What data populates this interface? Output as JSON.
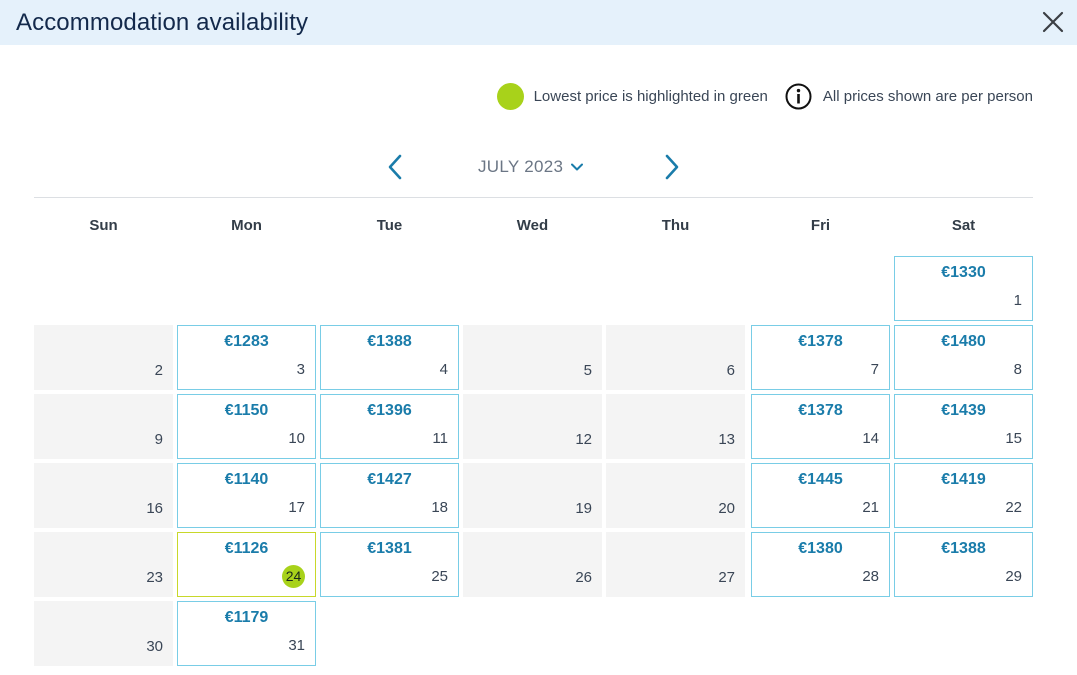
{
  "dialog": {
    "title": "Accommodation availability"
  },
  "legend": {
    "lowest_text": "Lowest price is highlighted in green",
    "info_text": "All prices shown are per person",
    "lowest_color": "#a8d21a"
  },
  "calendar": {
    "month_label": "JULY 2023",
    "weekdays": [
      "Sun",
      "Mon",
      "Tue",
      "Wed",
      "Thu",
      "Fri",
      "Sat"
    ],
    "start_weekday_index": 6,
    "days": [
      {
        "day": "1",
        "price": "€1330"
      },
      {
        "day": "2",
        "price": ""
      },
      {
        "day": "3",
        "price": "€1283"
      },
      {
        "day": "4",
        "price": "€1388"
      },
      {
        "day": "5",
        "price": ""
      },
      {
        "day": "6",
        "price": ""
      },
      {
        "day": "7",
        "price": "€1378"
      },
      {
        "day": "8",
        "price": "€1480"
      },
      {
        "day": "9",
        "price": ""
      },
      {
        "day": "10",
        "price": "€1150"
      },
      {
        "day": "11",
        "price": "€1396"
      },
      {
        "day": "12",
        "price": ""
      },
      {
        "day": "13",
        "price": ""
      },
      {
        "day": "14",
        "price": "€1378"
      },
      {
        "day": "15",
        "price": "€1439"
      },
      {
        "day": "16",
        "price": ""
      },
      {
        "day": "17",
        "price": "€1140"
      },
      {
        "day": "18",
        "price": "€1427"
      },
      {
        "day": "19",
        "price": ""
      },
      {
        "day": "20",
        "price": ""
      },
      {
        "day": "21",
        "price": "€1445"
      },
      {
        "day": "22",
        "price": "€1419"
      },
      {
        "day": "23",
        "price": ""
      },
      {
        "day": "24",
        "price": "€1126",
        "lowest": true
      },
      {
        "day": "25",
        "price": "€1381"
      },
      {
        "day": "26",
        "price": ""
      },
      {
        "day": "27",
        "price": ""
      },
      {
        "day": "28",
        "price": "€1380"
      },
      {
        "day": "29",
        "price": "€1388"
      },
      {
        "day": "30",
        "price": ""
      },
      {
        "day": "31",
        "price": "€1179"
      }
    ]
  },
  "icons": {
    "close": "close-icon",
    "info": "info-icon",
    "prev": "chevron-left-icon",
    "next": "chevron-right-icon",
    "dropdown": "chevron-down-icon"
  }
}
